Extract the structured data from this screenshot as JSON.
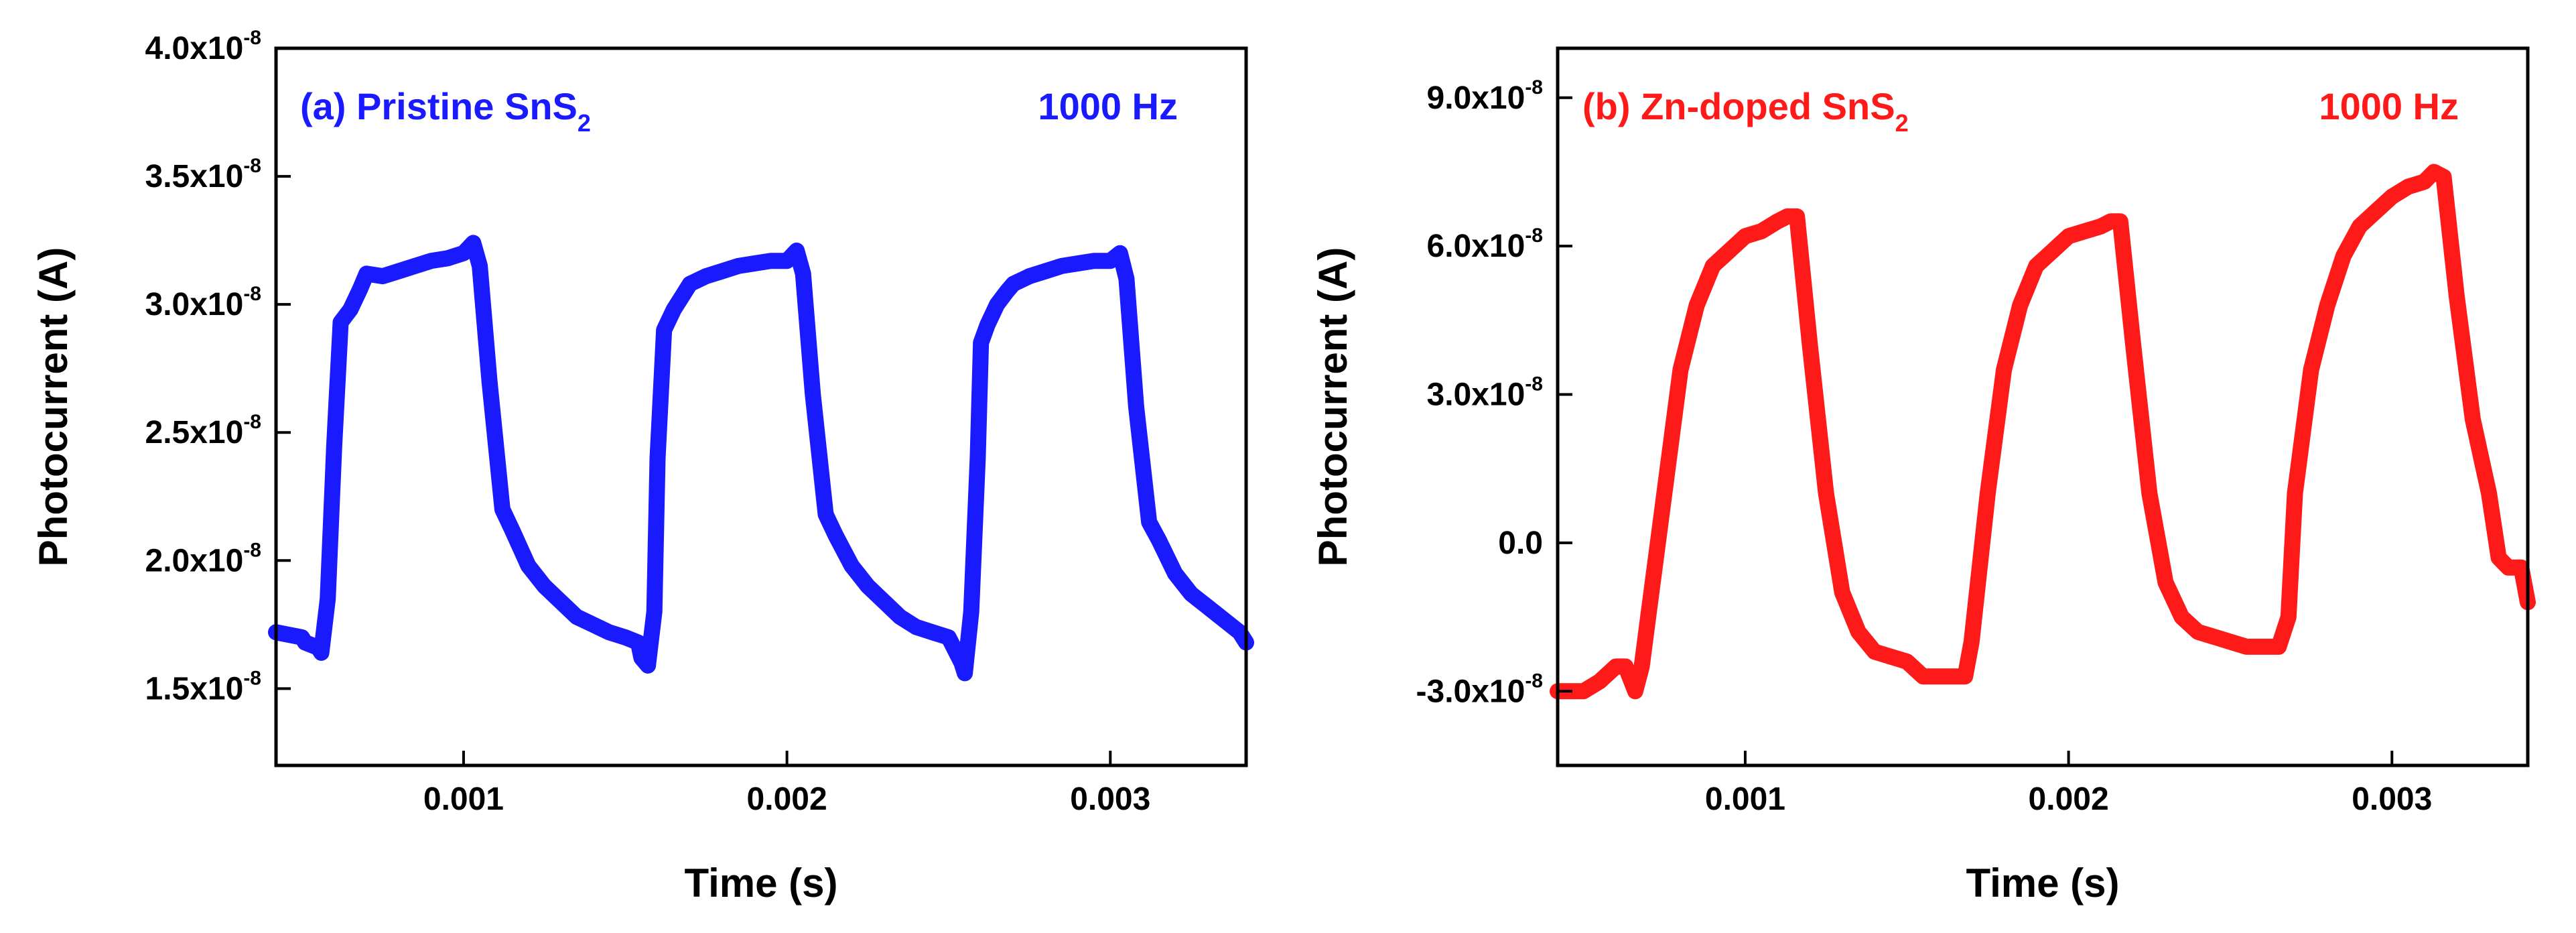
{
  "chart_data": [
    {
      "type": "line",
      "panel": "a",
      "annotation": {
        "prefix": "(a) Pristine SnS",
        "subscript": "2"
      },
      "frequency_label": "1000 Hz",
      "xlabel": "Time (s)",
      "ylabel": "Photocurrent (A)",
      "xlim": [
        0.00042,
        0.00342
      ],
      "ylim": [
        1.2e-08,
        4e-08
      ],
      "x_ticks": [
        {
          "value": 0.001,
          "label": "0.001"
        },
        {
          "value": 0.002,
          "label": "0.002"
        },
        {
          "value": 0.003,
          "label": "0.003"
        }
      ],
      "y_ticks": [
        {
          "value": 1.5e-08,
          "mantissa": "1.5x10",
          "exponent": "-8"
        },
        {
          "value": 2e-08,
          "mantissa": "2.0x10",
          "exponent": "-8"
        },
        {
          "value": 2.5e-08,
          "mantissa": "2.5x10",
          "exponent": "-8"
        },
        {
          "value": 3e-08,
          "mantissa": "3.0x10",
          "exponent": "-8"
        },
        {
          "value": 3.5e-08,
          "mantissa": "3.5x10",
          "exponent": "-8"
        },
        {
          "value": 4e-08,
          "mantissa": "4.0x10",
          "exponent": "-8"
        }
      ],
      "series": [
        {
          "name": "Pristine SnS2",
          "color": "#1a1aff",
          "x": [
            0.00042,
            0.0005,
            0.00051,
            0.00055,
            0.00056,
            0.00058,
            0.0006,
            0.00062,
            0.00065,
            0.00068,
            0.0007,
            0.00075,
            0.0008,
            0.00085,
            0.0009,
            0.00095,
            0.001,
            0.00103,
            0.00105,
            0.00108,
            0.00112,
            0.00115,
            0.0012,
            0.00125,
            0.0013,
            0.00135,
            0.0014,
            0.00145,
            0.0015,
            0.00154,
            0.00155,
            0.00157,
            0.00159,
            0.0016,
            0.00162,
            0.00165,
            0.00168,
            0.0017,
            0.00175,
            0.0018,
            0.00185,
            0.0019,
            0.00195,
            0.002,
            0.00203,
            0.00205,
            0.00208,
            0.00212,
            0.00215,
            0.0022,
            0.00225,
            0.0023,
            0.00235,
            0.0024,
            0.00245,
            0.0025,
            0.00254,
            0.00255,
            0.00257,
            0.00259,
            0.0026,
            0.00262,
            0.00265,
            0.00268,
            0.0027,
            0.00275,
            0.0028,
            0.00285,
            0.0029,
            0.00295,
            0.003,
            0.00303,
            0.00305,
            0.00308,
            0.00312,
            0.00315,
            0.0032,
            0.00325,
            0.0033,
            0.00335,
            0.0034,
            0.00342
          ],
          "y": [
            1.72e-08,
            1.7e-08,
            1.68e-08,
            1.66e-08,
            1.64e-08,
            1.85e-08,
            2.45e-08,
            2.93e-08,
            2.98e-08,
            3.06e-08,
            3.12e-08,
            3.11e-08,
            3.13e-08,
            3.15e-08,
            3.17e-08,
            3.18e-08,
            3.2e-08,
            3.24e-08,
            3.15e-08,
            2.7e-08,
            2.2e-08,
            2.12e-08,
            1.98e-08,
            1.9e-08,
            1.84e-08,
            1.78e-08,
            1.75e-08,
            1.72e-08,
            1.7e-08,
            1.68e-08,
            1.62e-08,
            1.59e-08,
            1.8e-08,
            2.4e-08,
            2.9e-08,
            2.98e-08,
            3.04e-08,
            3.08e-08,
            3.11e-08,
            3.13e-08,
            3.15e-08,
            3.16e-08,
            3.17e-08,
            3.17e-08,
            3.21e-08,
            3.12e-08,
            2.65e-08,
            2.18e-08,
            2.1e-08,
            1.98e-08,
            1.9e-08,
            1.84e-08,
            1.78e-08,
            1.74e-08,
            1.72e-08,
            1.7e-08,
            1.6e-08,
            1.56e-08,
            1.8e-08,
            2.4e-08,
            2.85e-08,
            2.92e-08,
            3e-08,
            3.05e-08,
            3.08e-08,
            3.11e-08,
            3.13e-08,
            3.15e-08,
            3.16e-08,
            3.17e-08,
            3.17e-08,
            3.2e-08,
            3.1e-08,
            2.6e-08,
            2.15e-08,
            2.08e-08,
            1.95e-08,
            1.87e-08,
            1.82e-08,
            1.77e-08,
            1.72e-08,
            1.68e-08
          ]
        }
      ]
    },
    {
      "type": "line",
      "panel": "b",
      "annotation": {
        "prefix": "(b) Zn-doped SnS",
        "subscript": "2"
      },
      "frequency_label": "1000 Hz",
      "xlabel": "Time (s)",
      "ylabel": "Photocurrent (A)",
      "xlim": [
        0.00042,
        0.00342
      ],
      "ylim": [
        -4.5e-08,
        1e-07
      ],
      "x_ticks": [
        {
          "value": 0.001,
          "label": "0.001"
        },
        {
          "value": 0.002,
          "label": "0.002"
        },
        {
          "value": 0.003,
          "label": "0.003"
        }
      ],
      "y_ticks": [
        {
          "value": -3e-08,
          "mantissa": "-3.0x10",
          "exponent": "-8"
        },
        {
          "value": 0,
          "mantissa": "0.0",
          "exponent": ""
        },
        {
          "value": 3e-08,
          "mantissa": "3.0x10",
          "exponent": "-8"
        },
        {
          "value": 6e-08,
          "mantissa": "6.0x10",
          "exponent": "-8"
        },
        {
          "value": 9e-08,
          "mantissa": "9.0x10",
          "exponent": "-8"
        }
      ],
      "series": [
        {
          "name": "Zn-doped SnS2",
          "color": "#ff1a1a",
          "x": [
            0.00042,
            0.0005,
            0.00055,
            0.0006,
            0.00063,
            0.00066,
            0.00068,
            0.0007,
            0.00075,
            0.0008,
            0.00085,
            0.0009,
            0.00095,
            0.001,
            0.00105,
            0.0011,
            0.00113,
            0.00116,
            0.0012,
            0.00125,
            0.0013,
            0.00135,
            0.0014,
            0.00145,
            0.0015,
            0.00155,
            0.0016,
            0.00165,
            0.00168,
            0.0017,
            0.00175,
            0.0018,
            0.00185,
            0.0019,
            0.00195,
            0.002,
            0.00205,
            0.0021,
            0.00213,
            0.00216,
            0.0022,
            0.00225,
            0.0023,
            0.00235,
            0.0024,
            0.00245,
            0.0025,
            0.00255,
            0.0026,
            0.00265,
            0.00268,
            0.0027,
            0.00275,
            0.0028,
            0.00285,
            0.0029,
            0.00295,
            0.003,
            0.00305,
            0.0031,
            0.00313,
            0.00316,
            0.0032,
            0.00325,
            0.0033,
            0.00333,
            0.00336,
            0.0034,
            0.00342
          ],
          "y": [
            -3e-08,
            -3e-08,
            -2.8e-08,
            -2.5e-08,
            -2.5e-08,
            -3e-08,
            -2.5e-08,
            -1.5e-08,
            1e-08,
            3.5e-08,
            4.8e-08,
            5.6e-08,
            5.9e-08,
            6.2e-08,
            6.3e-08,
            6.5e-08,
            6.6e-08,
            6.6e-08,
            4e-08,
            1e-08,
            -1e-08,
            -1.8e-08,
            -2.2e-08,
            -2.3e-08,
            -2.4e-08,
            -2.7e-08,
            -2.7e-08,
            -2.7e-08,
            -2.7e-08,
            -2e-08,
            1e-08,
            3.5e-08,
            4.8e-08,
            5.6e-08,
            5.9e-08,
            6.2e-08,
            6.3e-08,
            6.4e-08,
            6.5e-08,
            6.5e-08,
            4e-08,
            1e-08,
            -8e-09,
            -1.5e-08,
            -1.8e-08,
            -1.9e-08,
            -2e-08,
            -2.1e-08,
            -2.1e-08,
            -2.1e-08,
            -1.5e-08,
            1e-08,
            3.5e-08,
            4.8e-08,
            5.8e-08,
            6.4e-08,
            6.7e-08,
            7e-08,
            7.2e-08,
            7.3e-08,
            7.5e-08,
            7.4e-08,
            5e-08,
            2.5e-08,
            1e-08,
            -3e-09,
            -5e-09,
            -5e-09,
            -1.2e-08
          ]
        }
      ]
    }
  ]
}
